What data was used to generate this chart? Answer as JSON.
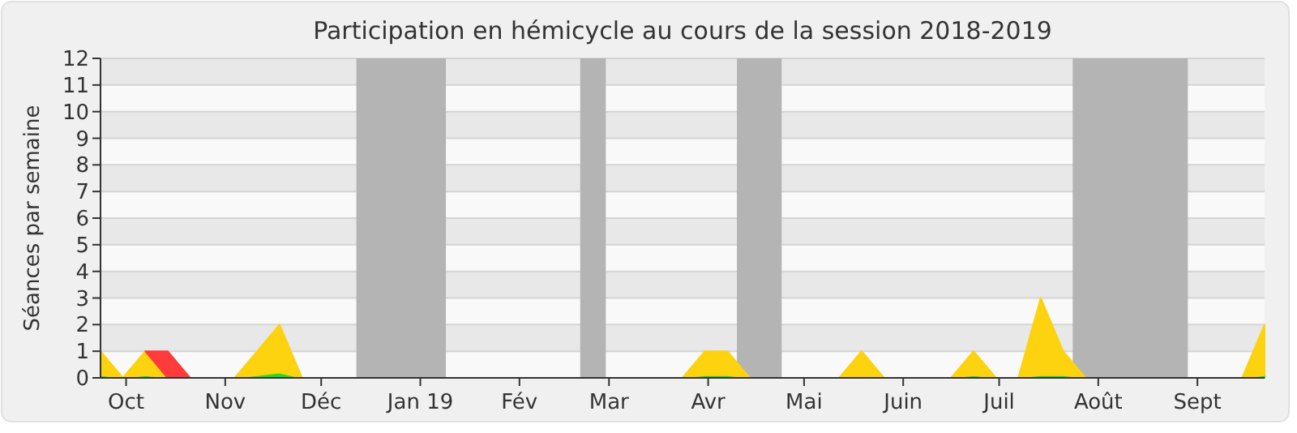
{
  "chart_data": {
    "type": "area",
    "stacked": true,
    "title": "Participation en hémicycle au cours de la session 2018-2019",
    "ylabel": "Séances par semaine",
    "x": [
      "2018-09-23",
      "2018-09-30",
      "2018-10-07",
      "2018-10-14",
      "2018-10-21",
      "2018-10-28",
      "2018-11-04",
      "2018-11-11",
      "2018-11-18",
      "2018-11-25",
      "2018-12-02",
      "2018-12-09",
      "2018-12-16",
      "2018-12-23",
      "2018-12-30",
      "2019-01-06",
      "2019-01-13",
      "2019-01-20",
      "2019-01-27",
      "2019-02-03",
      "2019-02-10",
      "2019-02-17",
      "2019-02-24",
      "2019-03-03",
      "2019-03-10",
      "2019-03-17",
      "2019-03-24",
      "2019-03-31",
      "2019-04-07",
      "2019-04-14",
      "2019-04-21",
      "2019-04-28",
      "2019-05-05",
      "2019-05-12",
      "2019-05-19",
      "2019-05-26",
      "2019-06-02",
      "2019-06-09",
      "2019-06-16",
      "2019-06-23",
      "2019-06-30",
      "2019-07-07",
      "2019-07-14",
      "2019-07-21",
      "2019-07-28",
      "2019-08-04",
      "2019-08-11",
      "2019-08-18",
      "2019-08-25",
      "2019-09-01",
      "2019-09-08",
      "2019-09-15",
      "2019-09-22"
    ],
    "series": [
      {
        "color": "#22dd22",
        "values": [
          0.1,
          0,
          0.1,
          0,
          0,
          0,
          0,
          0.1,
          0.2,
          0,
          0,
          0,
          0,
          0,
          0,
          0,
          0,
          0,
          0,
          0,
          0,
          0,
          0,
          0,
          0,
          0,
          0,
          0.1,
          0.1,
          0,
          0,
          0,
          0,
          0,
          0,
          0,
          0,
          0,
          0,
          0.1,
          0,
          0,
          0.1,
          0.1,
          0,
          0,
          0,
          0,
          0,
          0,
          0,
          0,
          0.1
        ]
      },
      {
        "color": "#fdd20e",
        "values": [
          0.9,
          0,
          0.9,
          0,
          0,
          0,
          0,
          0.9,
          1.8,
          0,
          0,
          0,
          0,
          0,
          0,
          0,
          0,
          0,
          0,
          0,
          0,
          0,
          0,
          0,
          0,
          0,
          0,
          0.9,
          0.9,
          0,
          0,
          0,
          0,
          0,
          1,
          0,
          0,
          0,
          0,
          0.9,
          0,
          0,
          2.9,
          0.9,
          0,
          0,
          0,
          0,
          0,
          0,
          0,
          0,
          1.9
        ]
      },
      {
        "color": "#ff3b3b",
        "values": [
          null,
          null,
          0,
          1,
          0,
          null,
          null,
          null,
          null,
          null,
          null,
          null,
          null,
          null,
          null,
          null,
          null,
          null,
          null,
          null,
          null,
          null,
          null,
          null,
          null,
          null,
          null,
          null,
          null,
          null,
          null,
          null,
          null,
          null,
          null,
          null,
          null,
          null,
          null,
          null,
          null,
          null,
          null,
          null,
          null,
          null,
          null,
          null,
          null,
          null,
          null,
          null,
          null
        ]
      }
    ],
    "xlim": [
      "2018-09-23",
      "2019-09-22"
    ],
    "xticks": [
      {
        "value": "2018-10-01",
        "label": "Oct"
      },
      {
        "value": "2018-11-01",
        "label": "Nov"
      },
      {
        "value": "2018-12-01",
        "label": "Déc"
      },
      {
        "value": "2019-01-01",
        "label": "Jan 19"
      },
      {
        "value": "2019-02-01",
        "label": "Fév"
      },
      {
        "value": "2019-03-01",
        "label": "Mar"
      },
      {
        "value": "2019-04-01",
        "label": "Avr"
      },
      {
        "value": "2019-05-01",
        "label": "Mai"
      },
      {
        "value": "2019-06-01",
        "label": "Juin"
      },
      {
        "value": "2019-07-01",
        "label": "Juil"
      },
      {
        "value": "2019-08-01",
        "label": "Août"
      },
      {
        "value": "2019-09-01",
        "label": "Sept"
      }
    ],
    "ylim": [
      0,
      12
    ],
    "yticks": [
      0,
      1,
      2,
      3,
      4,
      5,
      6,
      7,
      8,
      9,
      10,
      11,
      12
    ],
    "grid": "y",
    "bands": [
      {
        "axis": "x",
        "from": "2018-12-12",
        "to": "2019-01-09",
        "color": "#b4b4b4"
      },
      {
        "axis": "x",
        "from": "2019-02-20",
        "to": "2019-02-28",
        "color": "#b4b4b4"
      },
      {
        "axis": "x",
        "from": "2019-04-10",
        "to": "2019-04-24",
        "color": "#b4b4b4"
      },
      {
        "axis": "x",
        "from": "2019-07-24",
        "to": "2019-08-29",
        "color": "#b4b4b4"
      }
    ]
  }
}
